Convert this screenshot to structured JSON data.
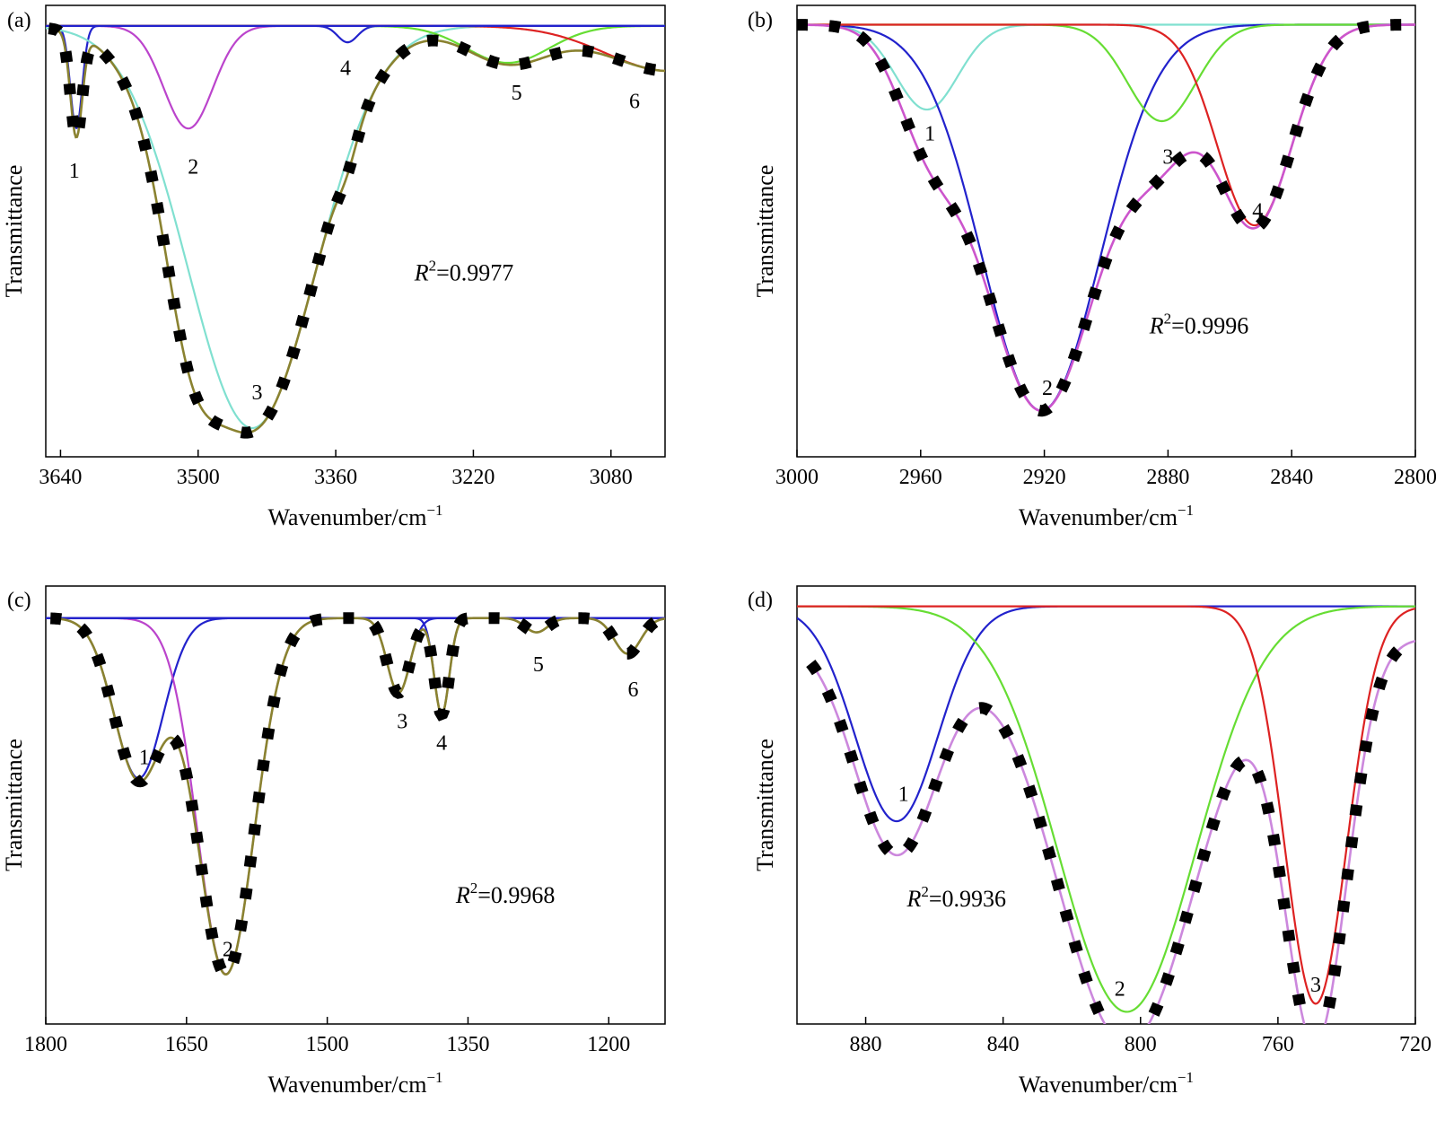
{
  "chart_data": [
    {
      "id": "a",
      "type": "line",
      "panel_label": "(a)",
      "xlabel": "Wavenumber/cm",
      "xlabel_sup": "−1",
      "ylabel": "Transmittance",
      "xlim": [
        3655,
        3025
      ],
      "ylim": [
        1.05,
        -0.05
      ],
      "xticks": [
        3640,
        3500,
        3360,
        3220,
        3080
      ],
      "xtick_labels": [
        "3640",
        "3500",
        "3360",
        "3220",
        "3080"
      ],
      "r2_prefix": "R",
      "r2_sup": "2",
      "r2_value": "=0.9977",
      "r2_pos": [
        3280,
        0.62
      ],
      "baseline": 0.0,
      "series": [
        {
          "color": "#2222cc",
          "peaks": [
            [
              3624,
              0.25,
              6
            ]
          ]
        },
        {
          "color": "#bb44cc",
          "peaks": [
            [
              3510,
              0.25,
              25
            ]
          ]
        },
        {
          "color": "#80e0d0",
          "peaks": [
            [
              3445,
              0.98,
              65
            ]
          ]
        },
        {
          "color": "#2222cc",
          "peaks": [
            [
              3348,
              0.04,
              10
            ]
          ]
        },
        {
          "color": "#66dd33",
          "peaks": [
            [
              3185,
              0.09,
              42
            ]
          ]
        },
        {
          "color": "#dd2222",
          "peaks": [
            [
              3020,
              0.11,
              65
            ]
          ]
        },
        {
          "color": "#2222cc",
          "peaks": []
        }
      ],
      "fit": {
        "color": "#8a8230",
        "offset": 0.0,
        "start": 3652
      },
      "peak_labels": [
        {
          "text": "1",
          "x": 3626,
          "y": 0.37
        },
        {
          "text": "2",
          "x": 3505,
          "y": 0.36
        },
        {
          "text": "3",
          "x": 3440,
          "y": 0.91
        },
        {
          "text": "4",
          "x": 3350,
          "y": 0.12
        },
        {
          "text": "5",
          "x": 3176,
          "y": 0.18
        },
        {
          "text": "6",
          "x": 3056,
          "y": 0.2
        }
      ]
    },
    {
      "id": "b",
      "type": "line",
      "panel_label": "(b)",
      "xlabel": "Wavenumber/cm",
      "xlabel_sup": "−1",
      "ylabel": "Transmittance",
      "xlim": [
        3000,
        2800
      ],
      "ylim": [
        1.12,
        -0.05
      ],
      "xticks": [
        3000,
        2960,
        2920,
        2880,
        2840,
        2800
      ],
      "xtick_labels": [
        "3000",
        "2960",
        "2920",
        "2880",
        "2840",
        "2800"
      ],
      "r2_prefix": "R",
      "r2_sup": "2",
      "r2_value": "=0.9996",
      "r2_pos": [
        2886,
        0.8
      ],
      "baseline": 0.0,
      "series": [
        {
          "color": "#80e0d0",
          "peaks": [
            [
              2958,
              0.22,
              10
            ]
          ]
        },
        {
          "color": "#2222cc",
          "peaks": [
            [
              2921,
              1.0,
              19
            ]
          ]
        },
        {
          "color": "#66dd33",
          "peaks": [
            [
              2882,
              0.25,
              11
            ]
          ]
        },
        {
          "color": "#dd2222",
          "peaks": [
            [
              2852,
              0.52,
              12
            ]
          ]
        }
      ],
      "fit": {
        "color": "#cc55cc",
        "offset": 0.0,
        "start": 3000
      },
      "peak_labels": [
        {
          "text": "1",
          "x": 2957,
          "y": 0.3
        },
        {
          "text": "2",
          "x": 2919,
          "y": 0.96
        },
        {
          "text": "3",
          "x": 2880,
          "y": 0.36
        },
        {
          "text": "4",
          "x": 2851,
          "y": 0.5
        }
      ]
    },
    {
      "id": "c",
      "type": "line",
      "panel_label": "(c)",
      "xlabel": "Wavenumber/cm",
      "xlabel_sup": "−1",
      "ylabel": "Transmittance",
      "xlim": [
        1800,
        1140
      ],
      "ylim": [
        1.14,
        -0.09
      ],
      "xticks": [
        1800,
        1650,
        1500,
        1350,
        1200
      ],
      "xtick_labels": [
        "1800",
        "1650",
        "1500",
        "1350",
        "1200"
      ],
      "r2_prefix": "R",
      "r2_sup": "2",
      "r2_value": "=0.9968",
      "r2_pos": [
        1363,
        0.8
      ],
      "baseline": 0.0,
      "series": [
        {
          "color": "#ff66aa",
          "peaks": []
        },
        {
          "color": "#2222cc",
          "peaks": [
            [
              1701,
              0.45,
              26
            ]
          ]
        },
        {
          "color": "#bb44cc",
          "peaks": [
            [
              1608,
              1.0,
              30
            ]
          ]
        },
        {
          "color": "#2222cc",
          "peaks": [
            [
              1424,
              0.21,
              12
            ]
          ]
        },
        {
          "color": "#2222cc",
          "peaks": [
            [
              1378,
              0.27,
              8
            ]
          ]
        },
        {
          "color": "#2222cc",
          "peaks": [
            [
              1277,
              0.04,
              12
            ]
          ]
        },
        {
          "color": "#2222cc",
          "peaks": [
            [
              1180,
              0.1,
              14
            ]
          ]
        }
      ],
      "fit": {
        "color": "#8a8230",
        "offset": 0.0,
        "start": 1795
      },
      "peak_labels": [
        {
          "text": "1",
          "x": 1695,
          "y": 0.41
        },
        {
          "text": "2",
          "x": 1606,
          "y": 0.95
        },
        {
          "text": "3",
          "x": 1420,
          "y": 0.31
        },
        {
          "text": "4",
          "x": 1378,
          "y": 0.37
        },
        {
          "text": "5",
          "x": 1275,
          "y": 0.15
        },
        {
          "text": "6",
          "x": 1174,
          "y": 0.22
        }
      ]
    },
    {
      "id": "d",
      "type": "line",
      "panel_label": "(d)",
      "xlabel": "Wavenumber/cm",
      "xlabel_sup": "−1",
      "ylabel": "Transmittance",
      "xlim": [
        900,
        720
      ],
      "ylim": [
        1.03,
        -0.05
      ],
      "xticks": [
        880,
        840,
        800,
        760,
        720
      ],
      "xtick_labels": [
        "880",
        "840",
        "800",
        "760",
        "720"
      ],
      "r2_prefix": "R",
      "r2_sup": "2",
      "r2_value": "=0.9936",
      "r2_pos": [
        868,
        0.74
      ],
      "baseline": 0.0,
      "series": [
        {
          "color": "#2222cc",
          "peaks": [
            [
              871,
              0.53,
              12
            ]
          ]
        },
        {
          "color": "#66dd33",
          "peaks": [
            [
              804,
              1.0,
              20
            ]
          ]
        },
        {
          "color": "#dd2222",
          "peaks": [
            [
              749,
              0.98,
              9
            ]
          ]
        }
      ],
      "fit": {
        "color": "#cc88dd",
        "offset": 0.08,
        "start": 896
      },
      "peak_labels": [
        {
          "text": "1",
          "x": 869,
          "y": 0.48
        },
        {
          "text": "2",
          "x": 806,
          "y": 0.96
        },
        {
          "text": "3",
          "x": 749,
          "y": 0.95
        }
      ]
    }
  ]
}
